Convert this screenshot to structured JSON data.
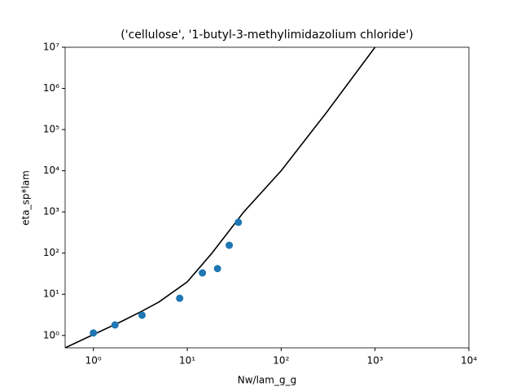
{
  "chart_data": {
    "type": "scatter",
    "title": "('cellulose', '1-butyl-3-methylimidazolium chloride')",
    "xlabel": "Nw/lam_g_g",
    "ylabel": "eta_sp*lam",
    "xscale": "log",
    "yscale": "log",
    "xlim": [
      0.5,
      10000
    ],
    "ylim": [
      0.5,
      10000000
    ],
    "xticks": [
      {
        "value": 1,
        "label": "10⁰"
      },
      {
        "value": 10,
        "label": "10¹"
      },
      {
        "value": 100,
        "label": "10²"
      },
      {
        "value": 1000,
        "label": "10³"
      },
      {
        "value": 10000,
        "label": "10⁴"
      }
    ],
    "yticks": [
      {
        "value": 1,
        "label": "10⁰"
      },
      {
        "value": 10,
        "label": "10¹"
      },
      {
        "value": 100,
        "label": "10²"
      },
      {
        "value": 1000,
        "label": "10³"
      },
      {
        "value": 10000,
        "label": "10⁴"
      },
      {
        "value": 100000,
        "label": "10⁵"
      },
      {
        "value": 1000000,
        "label": "10⁶"
      },
      {
        "value": 10000000,
        "label": "10⁷"
      }
    ],
    "series": [
      {
        "type": "line",
        "color": "#000000",
        "x": [
          0.5,
          1,
          2,
          3.3,
          5,
          10,
          18,
          25,
          40,
          100,
          300,
          1000
        ],
        "values": [
          0.5,
          1.05,
          2.2,
          3.9,
          6.5,
          20,
          95,
          250,
          1000,
          10000,
          250000,
          10000000
        ]
      },
      {
        "type": "scatter",
        "color": "#1f77b4",
        "x": [
          1,
          1.7,
          3.3,
          8.3,
          14.5,
          21,
          28,
          35
        ],
        "values": [
          1.15,
          1.8,
          3.1,
          8,
          33,
          42,
          155,
          560
        ]
      }
    ]
  }
}
